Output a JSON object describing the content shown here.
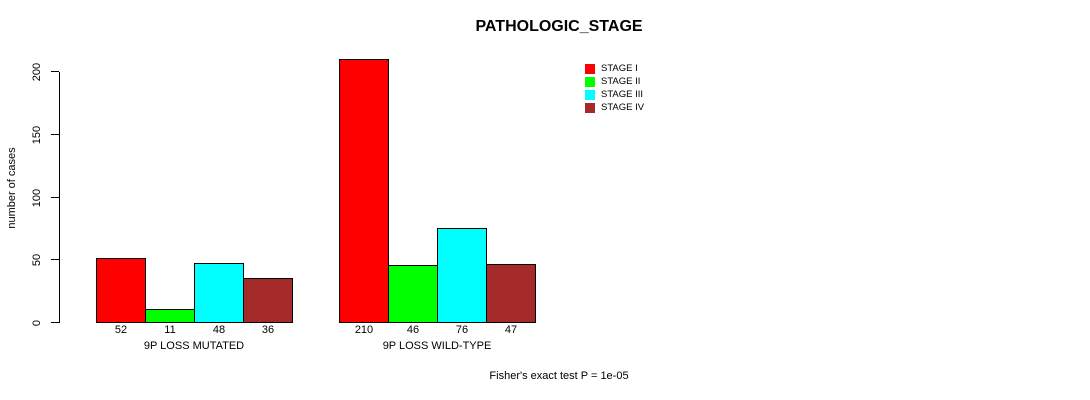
{
  "chart_data": {
    "type": "bar",
    "title": "PATHOLOGIC_STAGE",
    "ylabel": "number of cases",
    "xlabel": "",
    "ylim": [
      0,
      210
    ],
    "yticks": [
      0,
      50,
      100,
      150,
      200
    ],
    "categories": [
      "9P LOSS MUTATED",
      "9P LOSS WILD-TYPE"
    ],
    "series": [
      {
        "name": "STAGE I",
        "color": "#FF0000",
        "values": [
          52,
          210
        ]
      },
      {
        "name": "STAGE II",
        "color": "#00FF00",
        "values": [
          11,
          46
        ]
      },
      {
        "name": "STAGE III",
        "color": "#00FFFF",
        "values": [
          48,
          76
        ]
      },
      {
        "name": "STAGE IV",
        "color": "#A52A2A",
        "values": [
          36,
          47
        ]
      }
    ],
    "bar_labels_shown": true,
    "legend_position": "top-right",
    "grid": false,
    "annotation": "Fisher's exact test P = 1e-05"
  },
  "colors": {
    "background": "#FFFFFF",
    "axis": "#000000",
    "bar_border": "#000000",
    "text": "#000000"
  }
}
